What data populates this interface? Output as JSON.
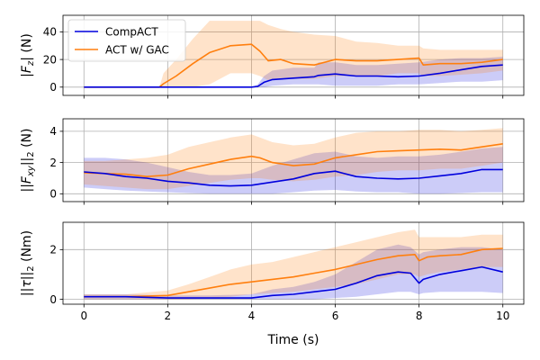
{
  "chart_data": [
    {
      "type": "line",
      "ylabel": "|F_z| (N)",
      "xlim": [
        -0.5,
        10.5
      ],
      "ylim": [
        -6,
        52
      ],
      "yticks": [
        0,
        20,
        40
      ],
      "xticks": [
        0,
        2,
        4,
        6,
        8,
        10
      ],
      "grid": true,
      "legend": {
        "position": "top-left",
        "entries": [
          "CompACT",
          "ACT w/ GAC"
        ]
      },
      "series": [
        {
          "name": "CompACT",
          "color": "#0000dd",
          "x": [
            0,
            1,
            2,
            3,
            4,
            4.15,
            4.3,
            4.5,
            5.0,
            5.5,
            5.6,
            6.0,
            6.5,
            7.0,
            7.5,
            8.0,
            8.5,
            9.0,
            9.5,
            10
          ],
          "y": [
            0,
            0,
            0,
            0,
            0,
            0.5,
            3.5,
            5.5,
            6.5,
            7.5,
            8.5,
            9.5,
            8.0,
            8.0,
            7.5,
            8.0,
            10.0,
            12.5,
            15.0,
            16.0
          ],
          "lower": [
            0,
            0,
            0,
            0,
            0,
            0,
            0,
            1.0,
            2.0,
            2.0,
            2.0,
            1.0,
            1.0,
            1.0,
            2.0,
            2.0,
            3.0,
            4.0,
            4.0,
            5.0
          ],
          "upper": [
            0,
            0,
            0,
            0,
            0,
            2.0,
            8.0,
            12.0,
            14.0,
            14.0,
            18.0,
            18.0,
            16.0,
            16.0,
            17.0,
            18.0,
            20.0,
            21.0,
            21.0,
            22.0
          ]
        },
        {
          "name": "ACT w/ GAC",
          "color": "#ff7f0e",
          "x": [
            0,
            1,
            1.8,
            1.9,
            2.2,
            2.6,
            3.0,
            3.5,
            4.0,
            4.2,
            4.4,
            4.7,
            5.0,
            5.5,
            6.0,
            6.5,
            7.0,
            7.5,
            8.0,
            8.1,
            8.5,
            9.0,
            9.5,
            10
          ],
          "y": [
            0,
            0,
            0,
            2.5,
            8.0,
            17.0,
            25.0,
            30.0,
            31.0,
            26.0,
            19.0,
            20.0,
            17.0,
            16.0,
            20.0,
            19.0,
            19.0,
            20.0,
            21.0,
            16.0,
            17.0,
            17.0,
            18.0,
            20.0
          ],
          "lower": [
            0,
            0,
            0,
            0,
            0,
            0,
            2.0,
            10.0,
            10.0,
            8.0,
            5.0,
            6.0,
            6.0,
            6.0,
            8.0,
            8.0,
            8.0,
            10.0,
            10.0,
            8.0,
            8.0,
            9.0,
            10.0,
            12.0
          ],
          "upper": [
            0,
            0,
            0,
            10.0,
            20.0,
            35.0,
            48.0,
            48.0,
            48.0,
            48.0,
            45.0,
            42.0,
            40.0,
            38.0,
            37.0,
            33.0,
            32.0,
            30.0,
            30.0,
            28.0,
            27.0,
            27.0,
            27.0,
            27.0
          ]
        }
      ]
    },
    {
      "type": "line",
      "ylabel": "||F_xy||_2 (N)",
      "xlim": [
        -0.5,
        10.5
      ],
      "ylim": [
        -0.5,
        4.8
      ],
      "yticks": [
        0,
        2,
        4
      ],
      "xticks": [
        0,
        2,
        4,
        6,
        8,
        10
      ],
      "grid": true,
      "series": [
        {
          "name": "CompACT",
          "color": "#0000dd",
          "x": [
            0,
            0.5,
            1.0,
            1.5,
            2.0,
            2.5,
            3.0,
            3.5,
            4.0,
            4.5,
            5.0,
            5.5,
            6.0,
            6.5,
            7.0,
            7.5,
            8.0,
            8.5,
            9.0,
            9.5,
            10
          ],
          "y": [
            1.4,
            1.3,
            1.1,
            1.0,
            0.8,
            0.7,
            0.55,
            0.5,
            0.55,
            0.75,
            0.95,
            1.3,
            1.45,
            1.1,
            1.0,
            0.95,
            1.0,
            1.15,
            1.3,
            1.55,
            1.55
          ],
          "lower": [
            0.4,
            0.3,
            0.2,
            0.15,
            0.1,
            0.05,
            0.0,
            0.0,
            0.0,
            0.0,
            0.1,
            0.2,
            0.25,
            0.15,
            0.1,
            0.1,
            0.0,
            0.0,
            0.05,
            0.1,
            0.1
          ],
          "upper": [
            2.3,
            2.3,
            2.2,
            2.0,
            1.7,
            1.4,
            1.2,
            1.2,
            1.3,
            1.8,
            2.2,
            2.6,
            2.7,
            2.4,
            2.3,
            2.4,
            2.4,
            2.5,
            2.7,
            2.9,
            3.0
          ]
        },
        {
          "name": "ACT w/ GAC",
          "color": "#ff7f0e",
          "x": [
            0,
            0.5,
            1.0,
            1.5,
            2.0,
            2.5,
            3.0,
            3.5,
            4.0,
            4.2,
            4.5,
            5.0,
            5.5,
            6.0,
            6.5,
            7.0,
            7.5,
            8.0,
            8.5,
            9.0,
            9.5,
            10
          ],
          "y": [
            1.35,
            1.3,
            1.25,
            1.1,
            1.2,
            1.6,
            1.9,
            2.2,
            2.4,
            2.3,
            2.0,
            1.8,
            1.9,
            2.3,
            2.5,
            2.7,
            2.75,
            2.8,
            2.85,
            2.8,
            3.0,
            3.2
          ],
          "lower": [
            0.6,
            0.5,
            0.4,
            0.3,
            0.3,
            0.5,
            0.7,
            0.9,
            1.0,
            1.0,
            0.9,
            0.8,
            0.9,
            1.1,
            1.2,
            1.4,
            1.5,
            1.5,
            1.6,
            1.6,
            1.8,
            2.0
          ],
          "upper": [
            2.1,
            2.1,
            2.2,
            2.3,
            2.5,
            3.0,
            3.3,
            3.6,
            3.8,
            3.6,
            3.3,
            3.1,
            3.2,
            3.6,
            3.9,
            4.0,
            4.0,
            4.1,
            4.1,
            4.0,
            4.1,
            4.2
          ]
        }
      ]
    },
    {
      "type": "line",
      "ylabel": "||τ||_2 (Nm)",
      "xlim": [
        -0.5,
        10.5
      ],
      "ylim": [
        -0.2,
        3.1
      ],
      "yticks": [
        0,
        2
      ],
      "xticks": [
        0,
        2,
        4,
        6,
        8,
        10
      ],
      "xlabel": "Time (s)",
      "grid": true,
      "series": [
        {
          "name": "CompACT",
          "color": "#0000dd",
          "x": [
            0,
            1.0,
            2.0,
            3.0,
            4.0,
            4.5,
            5.0,
            5.5,
            6.0,
            6.5,
            7.0,
            7.5,
            7.8,
            8.0,
            8.1,
            8.5,
            9.0,
            9.5,
            10
          ],
          "y": [
            0.1,
            0.1,
            0.05,
            0.05,
            0.05,
            0.15,
            0.2,
            0.3,
            0.4,
            0.65,
            0.95,
            1.1,
            1.05,
            0.65,
            0.8,
            1.0,
            1.15,
            1.3,
            1.1
          ],
          "lower": [
            0,
            0,
            0,
            0,
            0,
            0,
            0,
            0,
            0.05,
            0.1,
            0.2,
            0.3,
            0.3,
            0.2,
            0.25,
            0.3,
            0.3,
            0.3,
            0.25
          ],
          "upper": [
            0.2,
            0.2,
            0.15,
            0.15,
            0.2,
            0.4,
            0.5,
            0.7,
            1.0,
            1.5,
            2.0,
            2.2,
            2.1,
            1.8,
            1.9,
            2.0,
            2.1,
            2.1,
            2.0
          ]
        },
        {
          "name": "ACT w/ GAC",
          "color": "#ff7f0e",
          "x": [
            0,
            1.0,
            2.0,
            2.5,
            3.0,
            3.5,
            4.0,
            4.5,
            5.0,
            5.5,
            6.0,
            6.5,
            7.0,
            7.5,
            7.9,
            8.0,
            8.2,
            8.5,
            9.0,
            9.5,
            10
          ],
          "y": [
            0.1,
            0.1,
            0.15,
            0.3,
            0.45,
            0.6,
            0.7,
            0.8,
            0.9,
            1.05,
            1.2,
            1.4,
            1.6,
            1.75,
            1.8,
            1.55,
            1.7,
            1.75,
            1.8,
            2.0,
            2.05
          ],
          "lower": [
            0,
            0,
            0,
            0,
            0.05,
            0.1,
            0.2,
            0.25,
            0.3,
            0.4,
            0.5,
            0.6,
            0.8,
            1.0,
            1.0,
            0.9,
            1.0,
            1.1,
            1.2,
            1.3,
            1.3
          ],
          "upper": [
            0.2,
            0.2,
            0.35,
            0.6,
            0.9,
            1.2,
            1.4,
            1.5,
            1.7,
            1.9,
            2.1,
            2.3,
            2.5,
            2.7,
            2.8,
            2.5,
            2.5,
            2.5,
            2.5,
            2.6,
            2.6
          ]
        }
      ]
    }
  ]
}
